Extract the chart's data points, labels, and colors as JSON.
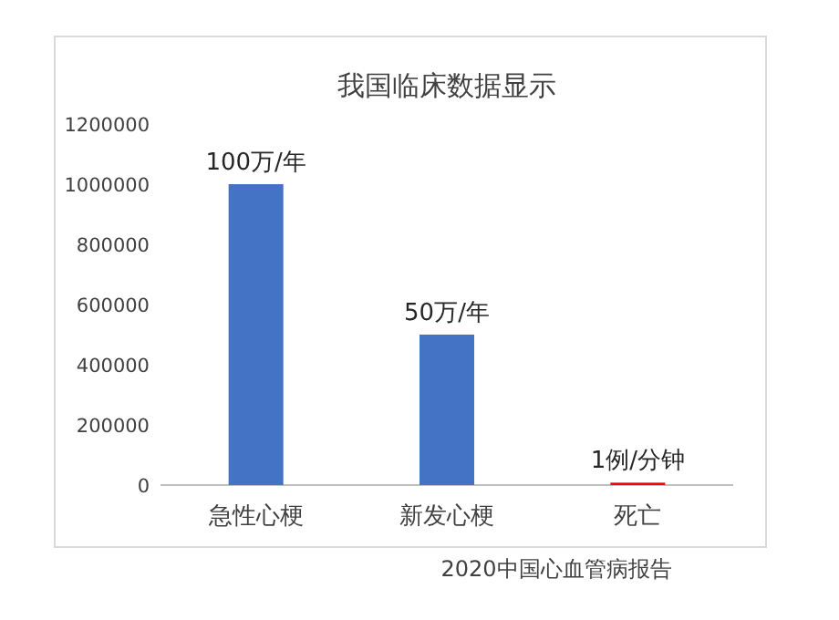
{
  "chart_data": {
    "type": "bar",
    "title": "我国临床数据显示",
    "categories": [
      "急性心梗",
      "新发心梗",
      "死亡"
    ],
    "values": [
      1000000,
      500000,
      8000
    ],
    "colors": [
      "#4472c4",
      "#4472c4",
      "#ff0000"
    ],
    "ylim": [
      0,
      1200000
    ],
    "yticks": [
      0,
      200000,
      400000,
      600000,
      800000,
      1000000,
      1200000
    ],
    "grid": false,
    "annotations": [
      {
        "text": "100万/年",
        "x": "急性心梗",
        "y": 1000000
      },
      {
        "text": "50万/年",
        "x": "新发心梗",
        "y": 500000
      },
      {
        "text": "1例/分钟",
        "x": "死亡",
        "y": 8000
      },
      "2020中国心血管病报告"
    ]
  }
}
